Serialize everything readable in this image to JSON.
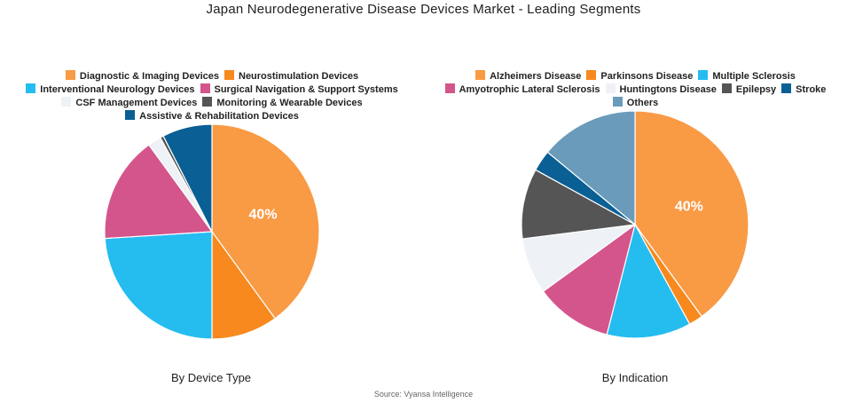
{
  "title": "Japan Neurodegenerative Disease Devices Market - Leading Segments",
  "source": "Source: Vyansa Intelligence",
  "chart_data": [
    {
      "type": "pie",
      "caption": "By Device Type",
      "legend_rows": [
        [
          0,
          1
        ],
        [
          2,
          3
        ],
        [
          4,
          5
        ],
        [
          6
        ]
      ],
      "slices": [
        {
          "label": "Diagnostic & Imaging Devices",
          "value": 40,
          "color": "#f99a45",
          "data_label": "40%"
        },
        {
          "label": "Neurostimulation Devices",
          "value": 10,
          "color": "#f7891e"
        },
        {
          "label": "Interventional Neurology Devices",
          "value": 24,
          "color": "#25bcf0"
        },
        {
          "label": "Surgical Navigation & Support Systems",
          "value": 16,
          "color": "#d4558c"
        },
        {
          "label": "CSF Management Devices",
          "value": 2,
          "color": "#eef2f6"
        },
        {
          "label": "Monitoring & Wearable Devices",
          "value": 0.5,
          "color": "#555555"
        },
        {
          "label": "Assistive & Rehabilitation Devices",
          "value": 7.5,
          "color": "#0a5f94"
        }
      ]
    },
    {
      "type": "pie",
      "caption": "By Indication",
      "legend_rows": [
        [
          0,
          1,
          2
        ],
        [
          3,
          4,
          5,
          6
        ],
        [
          7
        ]
      ],
      "slices": [
        {
          "label": "Alzheimers Disease",
          "value": 40,
          "color": "#f99a45",
          "data_label": "40%"
        },
        {
          "label": "Parkinsons Disease",
          "value": 2,
          "color": "#f7891e"
        },
        {
          "label": "Multiple Sclerosis",
          "value": 12,
          "color": "#25bcf0"
        },
        {
          "label": "Amyotrophic Lateral Sclerosis",
          "value": 11,
          "color": "#d4558c"
        },
        {
          "label": "Huntingtons Disease",
          "value": 8,
          "color": "#eef2f6"
        },
        {
          "label": "Epilepsy",
          "value": 10,
          "color": "#555555"
        },
        {
          "label": "Stroke",
          "value": 3,
          "color": "#0a5f94"
        },
        {
          "label": "Others",
          "value": 14,
          "color": "#6a9bba"
        }
      ]
    }
  ]
}
